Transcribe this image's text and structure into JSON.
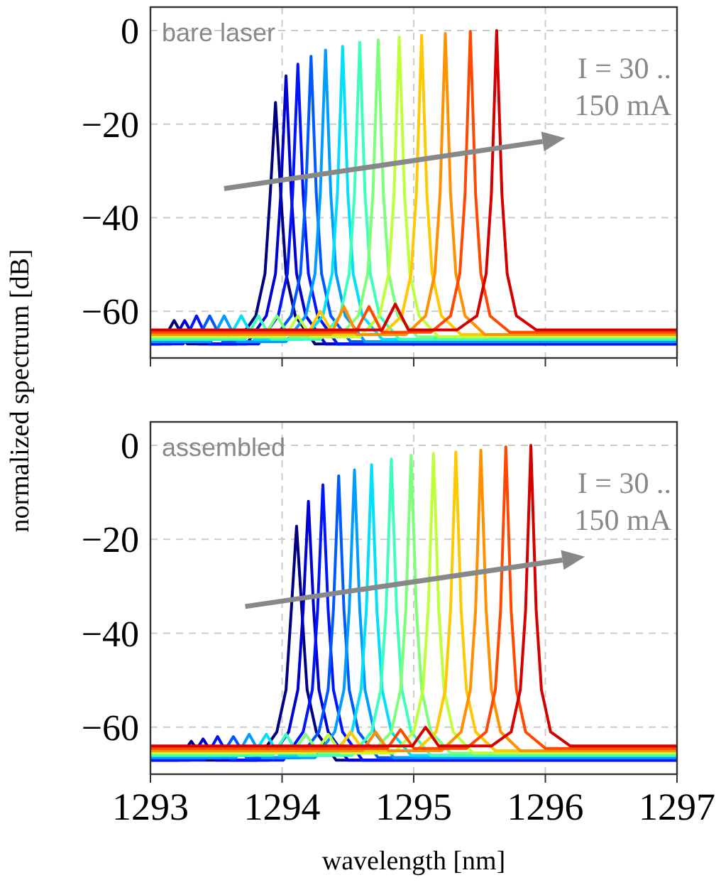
{
  "chart_data": [
    {
      "type": "line",
      "annotations": [
        "bare laser",
        "I = 30 ..\n150 mA"
      ],
      "ylabel": "normalized spectrum [dB]",
      "xlim": [
        1293,
        1297
      ],
      "ylim": [
        -70,
        5
      ],
      "xticks": [
        1293,
        1294,
        1295,
        1296,
        1297
      ],
      "yticks": [
        0,
        -20,
        -40,
        -60
      ],
      "grid": true,
      "tick_labels": "y",
      "series": [
        {
          "color": "#000080",
          "x": [
            1293,
            1293.08,
            1293.18,
            1293.28,
            1293.65,
            1293.8,
            1293.87,
            1293.91,
            1293.95,
            1293.99,
            1294.03,
            1294.1,
            1294.25,
            1296.4,
            1297
          ],
          "values": [
            -67,
            -67,
            -62,
            -67,
            -67,
            -61,
            -52,
            -35,
            -15.4,
            -35,
            -52,
            -61,
            -67,
            -67,
            -67
          ]
        },
        {
          "color": "#0000d0",
          "x": [
            1293,
            1293.16,
            1293.26,
            1293.36,
            1293.73,
            1293.88,
            1293.95,
            1293.99,
            1294.03,
            1294.07,
            1294.11,
            1294.18,
            1294.33,
            1296.4,
            1297
          ],
          "values": [
            -67,
            -67,
            -62,
            -67,
            -67,
            -61,
            -52,
            -35,
            -9.7,
            -35,
            -52,
            -61,
            -67,
            -67,
            -67
          ]
        },
        {
          "color": "#0014ff",
          "x": [
            1293,
            1293.25,
            1293.35,
            1293.45,
            1293.82,
            1293.97,
            1294.04,
            1294.08,
            1294.12,
            1294.16,
            1294.2,
            1294.27,
            1294.42,
            1296.4,
            1297
          ],
          "values": [
            -67,
            -67,
            -61,
            -67,
            -67,
            -61,
            -52,
            -35,
            -7.2,
            -35,
            -52,
            -61,
            -67,
            -67,
            -67
          ]
        },
        {
          "color": "#0058ff",
          "x": [
            1293,
            1293.35,
            1293.45,
            1293.55,
            1293.92,
            1294.07,
            1294.14,
            1294.18,
            1294.22,
            1294.26,
            1294.3,
            1294.37,
            1294.52,
            1296.4,
            1297
          ],
          "values": [
            -66.5,
            -66.5,
            -61,
            -66.5,
            -66.5,
            -61,
            -52,
            -35,
            -5.5,
            -35,
            -52,
            -61,
            -66.5,
            -66.5,
            -66.5
          ]
        },
        {
          "color": "#009cff",
          "x": [
            1293,
            1293.46,
            1293.56,
            1293.66,
            1294.03,
            1294.18,
            1294.25,
            1294.29,
            1294.33,
            1294.37,
            1294.41,
            1294.48,
            1294.63,
            1296.4,
            1297
          ],
          "values": [
            -66.5,
            -66.5,
            -61,
            -66.5,
            -66.5,
            -61,
            -52,
            -35,
            -4.2,
            -35,
            -52,
            -61,
            -66.5,
            -66.5,
            -66.5
          ]
        },
        {
          "color": "#00e0fb",
          "x": [
            1293,
            1293.59,
            1293.69,
            1293.79,
            1294.16,
            1294.31,
            1294.38,
            1294.42,
            1294.46,
            1294.5,
            1294.54,
            1294.61,
            1294.76,
            1296.4,
            1297
          ],
          "values": [
            -66,
            -66,
            -61,
            -66,
            -66,
            -61,
            -52,
            -35,
            -3.4,
            -35,
            -52,
            -61,
            -66,
            -66,
            -66
          ]
        },
        {
          "color": "#3cffbb",
          "x": [
            1293,
            1293.72,
            1293.82,
            1293.92,
            1294.29,
            1294.44,
            1294.51,
            1294.55,
            1294.59,
            1294.63,
            1294.67,
            1294.74,
            1294.89,
            1296.4,
            1297
          ],
          "values": [
            -66,
            -66,
            -61,
            -66,
            -66,
            -61,
            -52,
            -35,
            -2.5,
            -35,
            -52,
            -61,
            -66,
            -66,
            -66
          ]
        },
        {
          "color": "#7dff7a",
          "x": [
            1293,
            1293.86,
            1293.96,
            1294.06,
            1294.43,
            1294.58,
            1294.65,
            1294.69,
            1294.73,
            1294.77,
            1294.81,
            1294.88,
            1295.03,
            1296.4,
            1297
          ],
          "values": [
            -65.5,
            -65.5,
            -61,
            -65.5,
            -65.5,
            -61,
            -52,
            -35,
            -2,
            -35,
            -52,
            -61,
            -65.5,
            -65.5,
            -65.5
          ]
        },
        {
          "color": "#beff39",
          "x": [
            1293,
            1294.02,
            1294.12,
            1294.22,
            1294.59,
            1294.74,
            1294.81,
            1294.85,
            1294.89,
            1294.93,
            1294.97,
            1295.04,
            1295.19,
            1296.4,
            1297
          ],
          "values": [
            -65.5,
            -65.5,
            -61,
            -65.5,
            -65.5,
            -61,
            -52,
            -35,
            -1.4,
            -35,
            -52,
            -61,
            -65.5,
            -65.5,
            -65.5
          ]
        },
        {
          "color": "#ffc800",
          "x": [
            1293,
            1294.19,
            1294.29,
            1294.39,
            1294.76,
            1294.91,
            1294.98,
            1295.02,
            1295.06,
            1295.1,
            1295.14,
            1295.21,
            1295.36,
            1296.4,
            1297
          ],
          "values": [
            -65,
            -65,
            -60,
            -65,
            -65,
            -61,
            -52,
            -35,
            -1,
            -35,
            -52,
            -61,
            -65,
            -65,
            -65
          ]
        },
        {
          "color": "#ff9000",
          "x": [
            1293,
            1294.37,
            1294.47,
            1294.57,
            1294.94,
            1295.09,
            1295.16,
            1295.2,
            1295.24,
            1295.28,
            1295.32,
            1295.39,
            1295.54,
            1296.4,
            1297
          ],
          "values": [
            -65,
            -65,
            -59,
            -65,
            -65,
            -61,
            -52,
            -35,
            -0.6,
            -35,
            -52,
            -61,
            -65,
            -65,
            -65
          ]
        },
        {
          "color": "#ff4800",
          "x": [
            1293,
            1294.56,
            1294.66,
            1294.76,
            1295.13,
            1295.28,
            1295.35,
            1295.39,
            1295.43,
            1295.47,
            1295.51,
            1295.58,
            1295.73,
            1296.4,
            1297
          ],
          "values": [
            -64.5,
            -64.5,
            -59,
            -64.5,
            -64.5,
            -61,
            -52,
            -35,
            -0.2,
            -35,
            -52,
            -61,
            -64.5,
            -64.5,
            -64.5
          ]
        },
        {
          "color": "#d40000",
          "x": [
            1293,
            1294.76,
            1294.86,
            1294.96,
            1295.33,
            1295.48,
            1295.55,
            1295.59,
            1295.63,
            1295.67,
            1295.71,
            1295.78,
            1295.93,
            1296.4,
            1297
          ],
          "values": [
            -64,
            -64,
            -58.5,
            -64,
            -64,
            -61,
            -52,
            -35,
            0,
            -35,
            -52,
            -61,
            -64,
            -64,
            -64
          ]
        }
      ]
    },
    {
      "type": "line",
      "annotations": [
        "assembled",
        "I = 30 ..\n150 mA"
      ],
      "xlabel": "wavelength [nm]",
      "xlim": [
        1293,
        1297
      ],
      "ylim": [
        -70,
        5
      ],
      "xticks": [
        1293,
        1294,
        1295,
        1296,
        1297
      ],
      "yticks": [
        0,
        -20,
        -40,
        -60
      ],
      "grid": true,
      "series": [
        {
          "color": "#000080",
          "x": [
            1293,
            1293.21,
            1293.31,
            1293.41,
            1293.81,
            1293.96,
            1294.03,
            1294.07,
            1294.11,
            1294.15,
            1294.19,
            1294.26,
            1294.41,
            1296.4,
            1297
          ],
          "values": [
            -67,
            -67,
            -63,
            -67,
            -67,
            -61,
            -52,
            -35,
            -17.2,
            -35,
            -52,
            -61,
            -67,
            -67,
            -67
          ]
        },
        {
          "color": "#0000d0",
          "x": [
            1293,
            1293.3,
            1293.4,
            1293.5,
            1293.9,
            1294.05,
            1294.12,
            1294.16,
            1294.2,
            1294.24,
            1294.28,
            1294.35,
            1294.5,
            1296.4,
            1297
          ],
          "values": [
            -67,
            -67,
            -62.5,
            -67,
            -67,
            -61,
            -52,
            -35,
            -11.9,
            -35,
            -52,
            -61,
            -67,
            -67,
            -67
          ]
        },
        {
          "color": "#0014ff",
          "x": [
            1293,
            1293.41,
            1293.51,
            1293.61,
            1294.01,
            1294.16,
            1294.23,
            1294.27,
            1294.31,
            1294.35,
            1294.39,
            1294.46,
            1294.61,
            1296.4,
            1297
          ],
          "values": [
            -67,
            -67,
            -62,
            -67,
            -67,
            -61,
            -52,
            -35,
            -8.4,
            -35,
            -52,
            -61,
            -67,
            -67,
            -67
          ]
        },
        {
          "color": "#0058ff",
          "x": [
            1293,
            1293.53,
            1293.63,
            1293.73,
            1294.13,
            1294.28,
            1294.35,
            1294.39,
            1294.43,
            1294.47,
            1294.51,
            1294.58,
            1294.73,
            1296.4,
            1297
          ],
          "values": [
            -66.5,
            -66.5,
            -62,
            -66.5,
            -66.5,
            -61,
            -52,
            -35,
            -6.5,
            -35,
            -52,
            -61,
            -66.5,
            -66.5,
            -66.5
          ]
        },
        {
          "color": "#009cff",
          "x": [
            1293,
            1293.65,
            1293.75,
            1293.85,
            1294.25,
            1294.4,
            1294.47,
            1294.51,
            1294.55,
            1294.59,
            1294.63,
            1294.7,
            1294.85,
            1296.4,
            1297
          ],
          "values": [
            -66.5,
            -66.5,
            -61.5,
            -66.5,
            -66.5,
            -61,
            -52,
            -35,
            -5.2,
            -35,
            -52,
            -61,
            -66.5,
            -66.5,
            -66.5
          ]
        },
        {
          "color": "#00e0fb",
          "x": [
            1293,
            1293.78,
            1293.88,
            1293.98,
            1294.38,
            1294.53,
            1294.6,
            1294.64,
            1294.68,
            1294.72,
            1294.76,
            1294.83,
            1294.98,
            1296.4,
            1297
          ],
          "values": [
            -66,
            -66,
            -61.5,
            -66,
            -66,
            -61,
            -52,
            -35,
            -4.1,
            -35,
            -52,
            -61,
            -66,
            -66,
            -66
          ]
        },
        {
          "color": "#3cffbb",
          "x": [
            1293,
            1293.93,
            1294.03,
            1294.13,
            1294.53,
            1294.68,
            1294.75,
            1294.79,
            1294.83,
            1294.87,
            1294.91,
            1294.98,
            1295.13,
            1296.4,
            1297
          ],
          "values": [
            -66,
            -66,
            -61.5,
            -66,
            -66,
            -61,
            -52,
            -35,
            -2.9,
            -35,
            -52,
            -61,
            -66,
            -66,
            -66
          ]
        },
        {
          "color": "#7dff7a",
          "x": [
            1293,
            1294.08,
            1294.18,
            1294.28,
            1294.68,
            1294.83,
            1294.9,
            1294.94,
            1294.98,
            1295.02,
            1295.06,
            1295.13,
            1295.28,
            1296.4,
            1297
          ],
          "values": [
            -65.5,
            -65.5,
            -61.5,
            -65.5,
            -65.5,
            -61,
            -52,
            -35,
            -2.1,
            -35,
            -52,
            -61,
            -65.5,
            -65.5,
            -65.5
          ]
        },
        {
          "color": "#beff39",
          "x": [
            1293,
            1294.25,
            1294.35,
            1294.45,
            1294.85,
            1295,
            1295.07,
            1295.11,
            1295.15,
            1295.19,
            1295.23,
            1295.3,
            1295.45,
            1296.4,
            1297
          ],
          "values": [
            -65.5,
            -65.5,
            -61.5,
            -65.5,
            -65.5,
            -61,
            -52,
            -35,
            -1.7,
            -35,
            -52,
            -61,
            -65.5,
            -65.5,
            -65.5
          ]
        },
        {
          "color": "#ffc800",
          "x": [
            1293,
            1294.42,
            1294.52,
            1294.62,
            1295.02,
            1295.17,
            1295.24,
            1295.28,
            1295.32,
            1295.36,
            1295.4,
            1295.47,
            1295.62,
            1296.4,
            1297
          ],
          "values": [
            -65,
            -65,
            -61,
            -65,
            -65,
            -61,
            -52,
            -35,
            -1.4,
            -35,
            -52,
            -61,
            -65,
            -65,
            -65
          ]
        },
        {
          "color": "#ff9000",
          "x": [
            1293,
            1294.61,
            1294.71,
            1294.81,
            1295.21,
            1295.36,
            1295.43,
            1295.47,
            1295.51,
            1295.55,
            1295.59,
            1295.66,
            1295.81,
            1296.4,
            1297
          ],
          "values": [
            -65,
            -65,
            -61,
            -65,
            -65,
            -61,
            -52,
            -35,
            -1,
            -35,
            -52,
            -61,
            -65,
            -65,
            -65
          ]
        },
        {
          "color": "#ff4800",
          "x": [
            1293,
            1294.8,
            1294.9,
            1295,
            1295.4,
            1295.55,
            1295.62,
            1295.66,
            1295.7,
            1295.74,
            1295.78,
            1295.85,
            1296,
            1296.4,
            1297
          ],
          "values": [
            -64.5,
            -64.5,
            -60.5,
            -64.5,
            -64.5,
            -61,
            -52,
            -35,
            -0.3,
            -35,
            -52,
            -61,
            -64.5,
            -64.5,
            -64.5
          ]
        },
        {
          "color": "#d40000",
          "x": [
            1293,
            1294.99,
            1295.09,
            1295.19,
            1295.59,
            1295.74,
            1295.81,
            1295.85,
            1295.89,
            1295.93,
            1295.97,
            1296.04,
            1296.19,
            1296.4,
            1297
          ],
          "values": [
            -64,
            -64,
            -60,
            -64,
            -64,
            -61,
            -52,
            -35,
            0,
            -35,
            -52,
            -61,
            -64,
            -64,
            -64
          ]
        }
      ]
    }
  ]
}
